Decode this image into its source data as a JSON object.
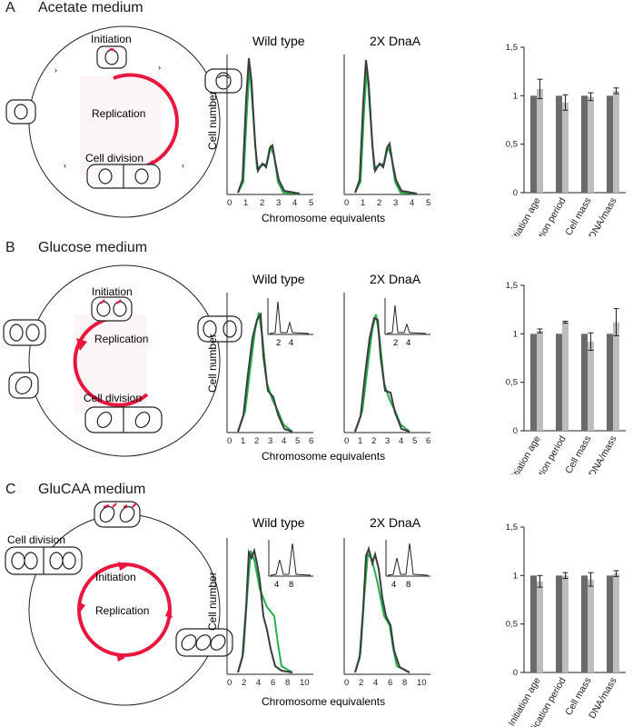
{
  "panels": [
    {
      "letter": "A",
      "title": "Acetate medium",
      "cycle": {
        "initiation": "Initiation",
        "replication": "Replication",
        "cell_division": "Cell division"
      },
      "histograms": [
        {
          "title": "Wild type"
        },
        {
          "title": "2X DnaA"
        }
      ],
      "x_label": "Chromosome equivalents",
      "y_label": "Cell number",
      "x_ticks": [
        "0",
        "1",
        "2",
        "3",
        "4",
        "5"
      ],
      "inset_ticks": [],
      "bars": {
        "categories": [
          "Initiation age",
          "Replication period",
          "Cell mass",
          "DNA/mass"
        ],
        "y_ticks": [
          "0",
          "0,5",
          "1",
          "1,5"
        ],
        "series": [
          {
            "values": [
              1,
              1,
              1,
              1
            ],
            "color": "#6a6a6a"
          },
          {
            "values": [
              1.07,
              0.93,
              0.99,
              1.05
            ],
            "errors": [
              0.1,
              0.08,
              0.04,
              0.03
            ],
            "color": "#bdbdbd"
          }
        ]
      }
    },
    {
      "letter": "B",
      "title": "Glucose medium",
      "cycle": {
        "initiation": "Initiation",
        "replication": "Replication",
        "cell_division": "Cell division"
      },
      "histograms": [
        {
          "title": "Wild type"
        },
        {
          "title": "2X DnaA"
        }
      ],
      "x_label": "Chromosome equivalents",
      "y_label": "Cell number",
      "x_ticks": [
        "0",
        "1",
        "2",
        "3",
        "4",
        "5",
        "6"
      ],
      "inset_ticks": [
        "2",
        "4"
      ],
      "bars": {
        "categories": [
          "Initiation age",
          "Replication period",
          "Cell mass",
          "DNA/mass"
        ],
        "y_ticks": [
          "0",
          "0,5",
          "1",
          "1,5"
        ],
        "series": [
          {
            "values": [
              1,
              1,
              1,
              1
            ],
            "color": "#6a6a6a"
          },
          {
            "values": [
              1.03,
              1.12,
              0.92,
              1.12
            ],
            "errors": [
              0.02,
              0.01,
              0.09,
              0.14
            ],
            "color": "#bdbdbd"
          }
        ]
      }
    },
    {
      "letter": "C",
      "title": "GluCAA medium",
      "cycle": {
        "initiation": "Initiation",
        "replication": "Replication",
        "cell_division": "Cell division"
      },
      "histograms": [
        {
          "title": "Wild type"
        },
        {
          "title": "2X DnaA"
        }
      ],
      "x_label": "Chromosome equivalents",
      "y_label": "Cell number",
      "x_ticks": [
        "0",
        "2",
        "4",
        "6",
        "8",
        "10"
      ],
      "inset_ticks": [
        "4",
        "8"
      ],
      "bars": {
        "categories": [
          "Initiation age",
          "Replication period",
          "Cell mass",
          "DNA/mass"
        ],
        "y_ticks": [
          "0",
          "0,5",
          "1",
          "1,5"
        ],
        "series": [
          {
            "values": [
              1,
              1,
              1,
              1
            ],
            "color": "#6a6a6a"
          },
          {
            "values": [
              0.94,
              1.0,
              0.96,
              1.02
            ],
            "errors": [
              0.06,
              0.03,
              0.07,
              0.03
            ],
            "color": "#bdbdbd"
          }
        ]
      }
    }
  ],
  "colors": {
    "replication_arrow": "#e8173e",
    "fit_line": "#22b14c",
    "data_line": "#3c3c3c"
  }
}
